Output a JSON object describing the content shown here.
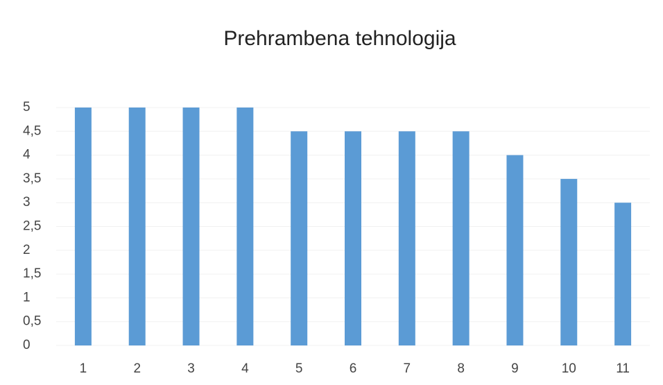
{
  "chart_data": {
    "type": "bar",
    "title": "Prehrambena tehnologija",
    "categories": [
      "1",
      "2",
      "3",
      "4",
      "5",
      "6",
      "7",
      "8",
      "9",
      "10",
      "11"
    ],
    "values": [
      5,
      5,
      5,
      5,
      4.5,
      4.5,
      4.5,
      4.5,
      4,
      3.5,
      3
    ],
    "color": "#5b9bd5",
    "ylim": [
      0,
      5
    ],
    "yticks": [
      0,
      {
        "value": 0.5,
        "label": "0,5"
      },
      1,
      {
        "value": 1.5,
        "label": "1,5"
      },
      2,
      {
        "value": 2.5,
        "label": "2,5"
      },
      3,
      {
        "value": 3.5,
        "label": "3,5"
      },
      4,
      {
        "value": 4.5,
        "label": "4,5"
      },
      5
    ],
    "grid": true
  }
}
